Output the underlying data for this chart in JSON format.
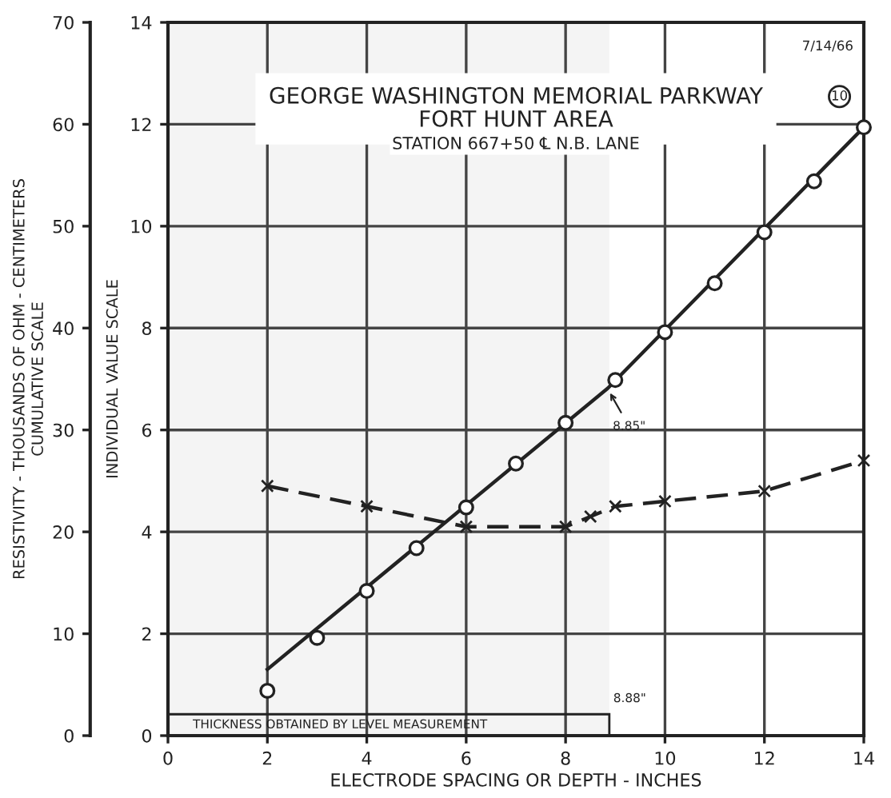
{
  "chart_data": {
    "type": "line",
    "title": "GEORGE WASHINGTON MEMORIAL PARKWAY",
    "subtitle": "FORT HUNT AREA",
    "xlabel": "ELECTRODE SPACING OR DEPTH - INCHES",
    "ylabel": "INDIVIDUAL VALUE SCALE",
    "y2label": "RESISTIVITY - THOUSANDS OF OHM - CENTIMETERS\nCUMULATIVE SCALE",
    "xlim": [
      0,
      14
    ],
    "xticks": [
      0,
      2,
      4,
      6,
      8,
      10,
      12,
      14
    ],
    "ylim": [
      0,
      14
    ],
    "yticks": [
      0,
      2,
      4,
      6,
      8,
      10,
      12,
      14
    ],
    "y2lim": [
      0,
      70
    ],
    "y2ticks": [
      0,
      10,
      20,
      30,
      40,
      50,
      60,
      70
    ],
    "grid": true,
    "series": [
      {
        "type": "scatter",
        "axis": "y2",
        "color": "#222222",
        "marker": "circle",
        "x": [
          2,
          3,
          4,
          5,
          6,
          7,
          8,
          9,
          10,
          11,
          12,
          13,
          14
        ],
        "values": [
          4.4,
          9.6,
          14.2,
          18.4,
          22.4,
          26.7,
          30.7,
          34.9,
          39.6,
          44.4,
          49.4,
          54.4,
          59.7
        ]
      },
      {
        "type": "line",
        "axis": "y2",
        "color": "#222222",
        "marker": "none",
        "line_style": "solid",
        "x": [
          2,
          8.85,
          14
        ],
        "values": [
          6.5,
          34.1,
          59.7
        ]
      },
      {
        "type": "line",
        "color": "#222222",
        "marker": "cross",
        "line_style": "dashed",
        "x": [
          2,
          4,
          6,
          8,
          8.5,
          9,
          10,
          12,
          14
        ],
        "values": [
          4.9,
          4.5,
          4.1,
          4.1,
          4.3,
          4.5,
          4.6,
          4.8,
          5.4
        ]
      }
    ],
    "bands": [
      {
        "axis": "x",
        "from": 0,
        "to": 8.88,
        "label": "THICKNESS OBTAINED BY LEVEL MEASUREMENT",
        "color": "#f4f4f4"
      }
    ],
    "annotations": [
      "STATION 667+50 ℄ N.B. LANE",
      "7/14/66",
      "10",
      {
        "text": "8.85\"",
        "x": 8.85,
        "y": 6.8
      },
      "8.88\""
    ]
  }
}
